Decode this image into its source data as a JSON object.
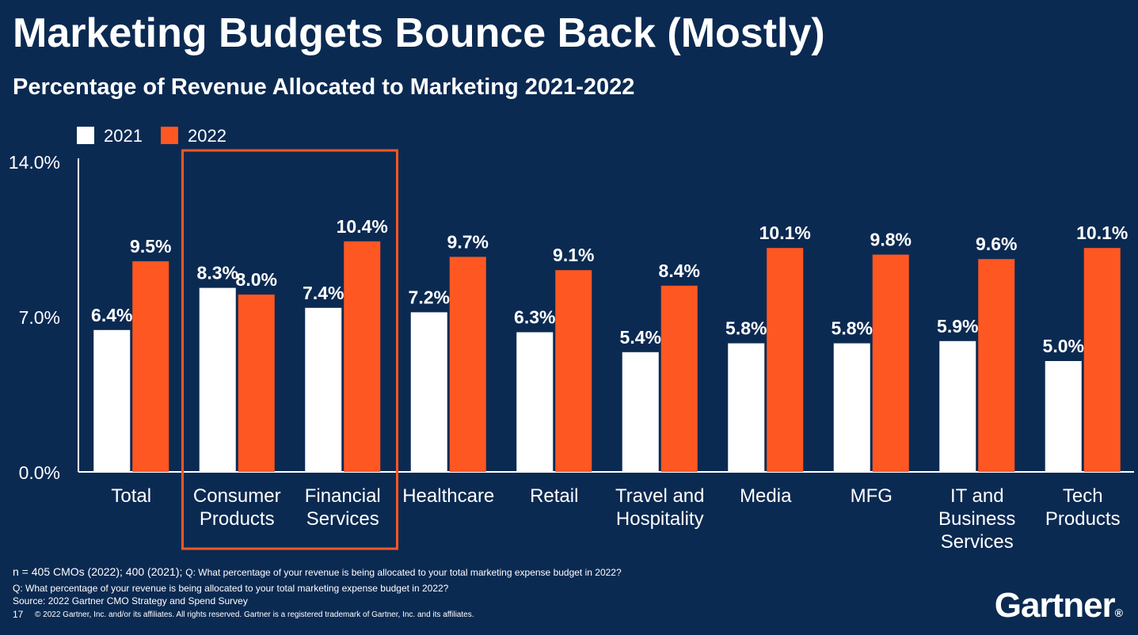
{
  "slide": {
    "title": "Marketing Budgets Bounce Back (Mostly)",
    "subtitle": "Percentage of Revenue Allocated to Marketing 2021-2022",
    "footnote_n": "n = 405 CMOs (2022); 400 (2021);",
    "footnote_q_inline": "Q: What percentage of your revenue is being allocated to your total marketing expense budget in 2022?",
    "footnote_q": "Q: What percentage of your revenue is being allocated to your total marketing expense budget in 2022?",
    "source": "Source: 2022 Gartner CMO Strategy and Spend Survey",
    "page_number": "17",
    "copyright": "© 2022 Gartner, Inc. and/or its affiliates. All rights reserved. Gartner is a registered trademark of Gartner, Inc. and its affiliates.",
    "logo": "Gartner",
    "logo_mark": "®"
  },
  "colors": {
    "background": "#0b2a52",
    "series_2021": "#ffffff",
    "series_2022": "#ff5722",
    "highlight_box": "#ff5722"
  },
  "chart_data": {
    "type": "bar",
    "categories": [
      [
        "Total"
      ],
      [
        "Consumer",
        "Products"
      ],
      [
        "Financial",
        "Services"
      ],
      [
        "Healthcare"
      ],
      [
        "Retail"
      ],
      [
        "Travel and",
        "Hospitality"
      ],
      [
        "Media"
      ],
      [
        "MFG"
      ],
      [
        "IT and",
        "Business",
        "Services"
      ],
      [
        "Tech",
        "Products"
      ]
    ],
    "series": [
      {
        "name": "2021",
        "values": [
          6.4,
          8.3,
          7.4,
          7.2,
          6.3,
          5.4,
          5.8,
          5.8,
          5.9,
          5.0
        ]
      },
      {
        "name": "2022",
        "values": [
          9.5,
          8.0,
          10.4,
          9.7,
          9.1,
          8.4,
          10.1,
          9.8,
          9.6,
          10.1
        ]
      }
    ],
    "ylim": [
      0,
      14
    ],
    "yticks": [
      "0.0%",
      "7.0%",
      "14.0%"
    ],
    "ytick_values": [
      0,
      7,
      14
    ],
    "value_suffix": "%",
    "legend_position": "top-left",
    "grid": false,
    "highlighted_categories": [
      1,
      2
    ]
  }
}
